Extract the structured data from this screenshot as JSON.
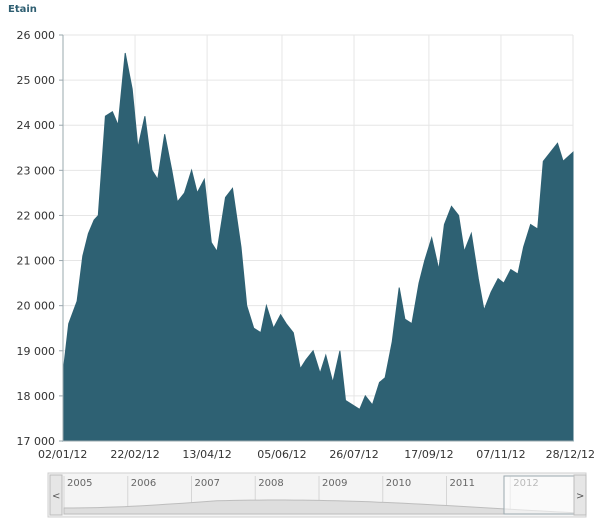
{
  "chart_data": {
    "type": "area",
    "title": "Etain",
    "xlabel": "",
    "ylabel": "",
    "ylim": [
      17000,
      26000
    ],
    "grid": true,
    "x_ticks": [
      "02/01/12",
      "22/02/12",
      "13/04/12",
      "05/06/12",
      "26/07/12",
      "17/09/12",
      "07/11/12",
      "28/12/12"
    ],
    "y_ticks": [
      "17 000",
      "18 000",
      "19 000",
      "20 000",
      "21 000",
      "22 000",
      "23 000",
      "24 000",
      "25 000",
      "26 000"
    ],
    "color": "#2e6173",
    "series": [
      {
        "values": [
          [
            "02/01/12",
            18500
          ],
          [
            "06/01/12",
            19600
          ],
          [
            "12/01/12",
            20100
          ],
          [
            "16/01/12",
            21100
          ],
          [
            "20/01/12",
            21600
          ],
          [
            "24/01/12",
            21900
          ],
          [
            "27/01/12",
            22000
          ],
          [
            "01/02/12",
            24200
          ],
          [
            "06/02/12",
            24300
          ],
          [
            "10/02/12",
            24000
          ],
          [
            "15/02/12",
            25600
          ],
          [
            "20/02/12",
            24800
          ],
          [
            "24/02/12",
            23500
          ],
          [
            "29/02/12",
            24200
          ],
          [
            "05/03/12",
            23000
          ],
          [
            "09/03/12",
            22800
          ],
          [
            "14/03/12",
            23800
          ],
          [
            "19/03/12",
            23000
          ],
          [
            "23/03/12",
            22300
          ],
          [
            "28/03/12",
            22500
          ],
          [
            "02/04/12",
            23000
          ],
          [
            "06/04/12",
            22500
          ],
          [
            "11/04/12",
            22800
          ],
          [
            "16/04/12",
            21400
          ],
          [
            "20/04/12",
            21200
          ],
          [
            "26/04/12",
            22400
          ],
          [
            "01/05/12",
            22600
          ],
          [
            "07/05/12",
            21300
          ],
          [
            "11/05/12",
            20000
          ],
          [
            "16/05/12",
            19500
          ],
          [
            "21/05/12",
            19400
          ],
          [
            "25/05/12",
            20000
          ],
          [
            "30/05/12",
            19500
          ],
          [
            "04/06/12",
            19800
          ],
          [
            "08/06/12",
            19600
          ],
          [
            "13/06/12",
            19400
          ],
          [
            "18/06/12",
            18600
          ],
          [
            "22/06/12",
            18800
          ],
          [
            "27/06/12",
            19000
          ],
          [
            "02/07/12",
            18500
          ],
          [
            "06/07/12",
            18900
          ],
          [
            "11/07/12",
            18300
          ],
          [
            "16/07/12",
            19000
          ],
          [
            "20/07/12",
            17900
          ],
          [
            "25/07/12",
            17800
          ],
          [
            "30/07/12",
            17700
          ],
          [
            "03/08/12",
            18000
          ],
          [
            "08/08/12",
            17800
          ],
          [
            "13/08/12",
            18300
          ],
          [
            "17/08/12",
            18400
          ],
          [
            "22/08/12",
            19200
          ],
          [
            "27/08/12",
            20400
          ],
          [
            "31/08/12",
            19700
          ],
          [
            "05/09/12",
            19600
          ],
          [
            "10/09/12",
            20500
          ],
          [
            "14/09/12",
            21000
          ],
          [
            "19/09/12",
            21500
          ],
          [
            "24/09/12",
            20800
          ],
          [
            "28/09/12",
            21800
          ],
          [
            "03/10/12",
            22200
          ],
          [
            "08/10/12",
            22000
          ],
          [
            "12/10/12",
            21200
          ],
          [
            "17/10/12",
            21600
          ],
          [
            "22/10/12",
            20600
          ],
          [
            "26/10/12",
            19900
          ],
          [
            "31/10/12",
            20300
          ],
          [
            "05/11/12",
            20600
          ],
          [
            "09/11/12",
            20500
          ],
          [
            "14/11/12",
            20800
          ],
          [
            "19/11/12",
            20700
          ],
          [
            "23/11/12",
            21300
          ],
          [
            "28/11/12",
            21800
          ],
          [
            "03/12/12",
            21700
          ],
          [
            "07/12/12",
            23200
          ],
          [
            "12/12/12",
            23400
          ],
          [
            "17/12/12",
            23600
          ],
          [
            "21/12/12",
            23200
          ],
          [
            "28/12/12",
            23400
          ]
        ]
      }
    ]
  },
  "navigator": {
    "years": [
      "2005",
      "2006",
      "2007",
      "2008",
      "2009",
      "2010",
      "2011",
      "2012"
    ],
    "selected_year": "2012",
    "left_button": "<",
    "right_button": ">"
  }
}
